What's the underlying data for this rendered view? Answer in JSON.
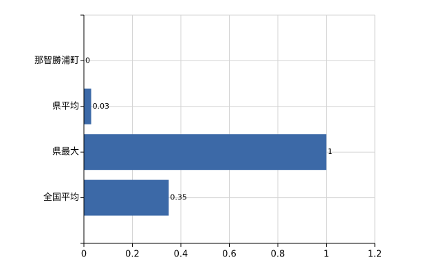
{
  "chart_data": {
    "type": "bar",
    "orientation": "horizontal",
    "categories": [
      "那智勝浦町",
      "県平均",
      "県最大",
      "全国平均"
    ],
    "values": [
      0,
      0.03,
      1,
      0.35
    ],
    "color": "#3c69a7",
    "xlim": [
      0,
      1.2
    ],
    "xticks": [
      0,
      0.2,
      0.4,
      0.6,
      0.8,
      1,
      1.2
    ],
    "grid": true
  }
}
